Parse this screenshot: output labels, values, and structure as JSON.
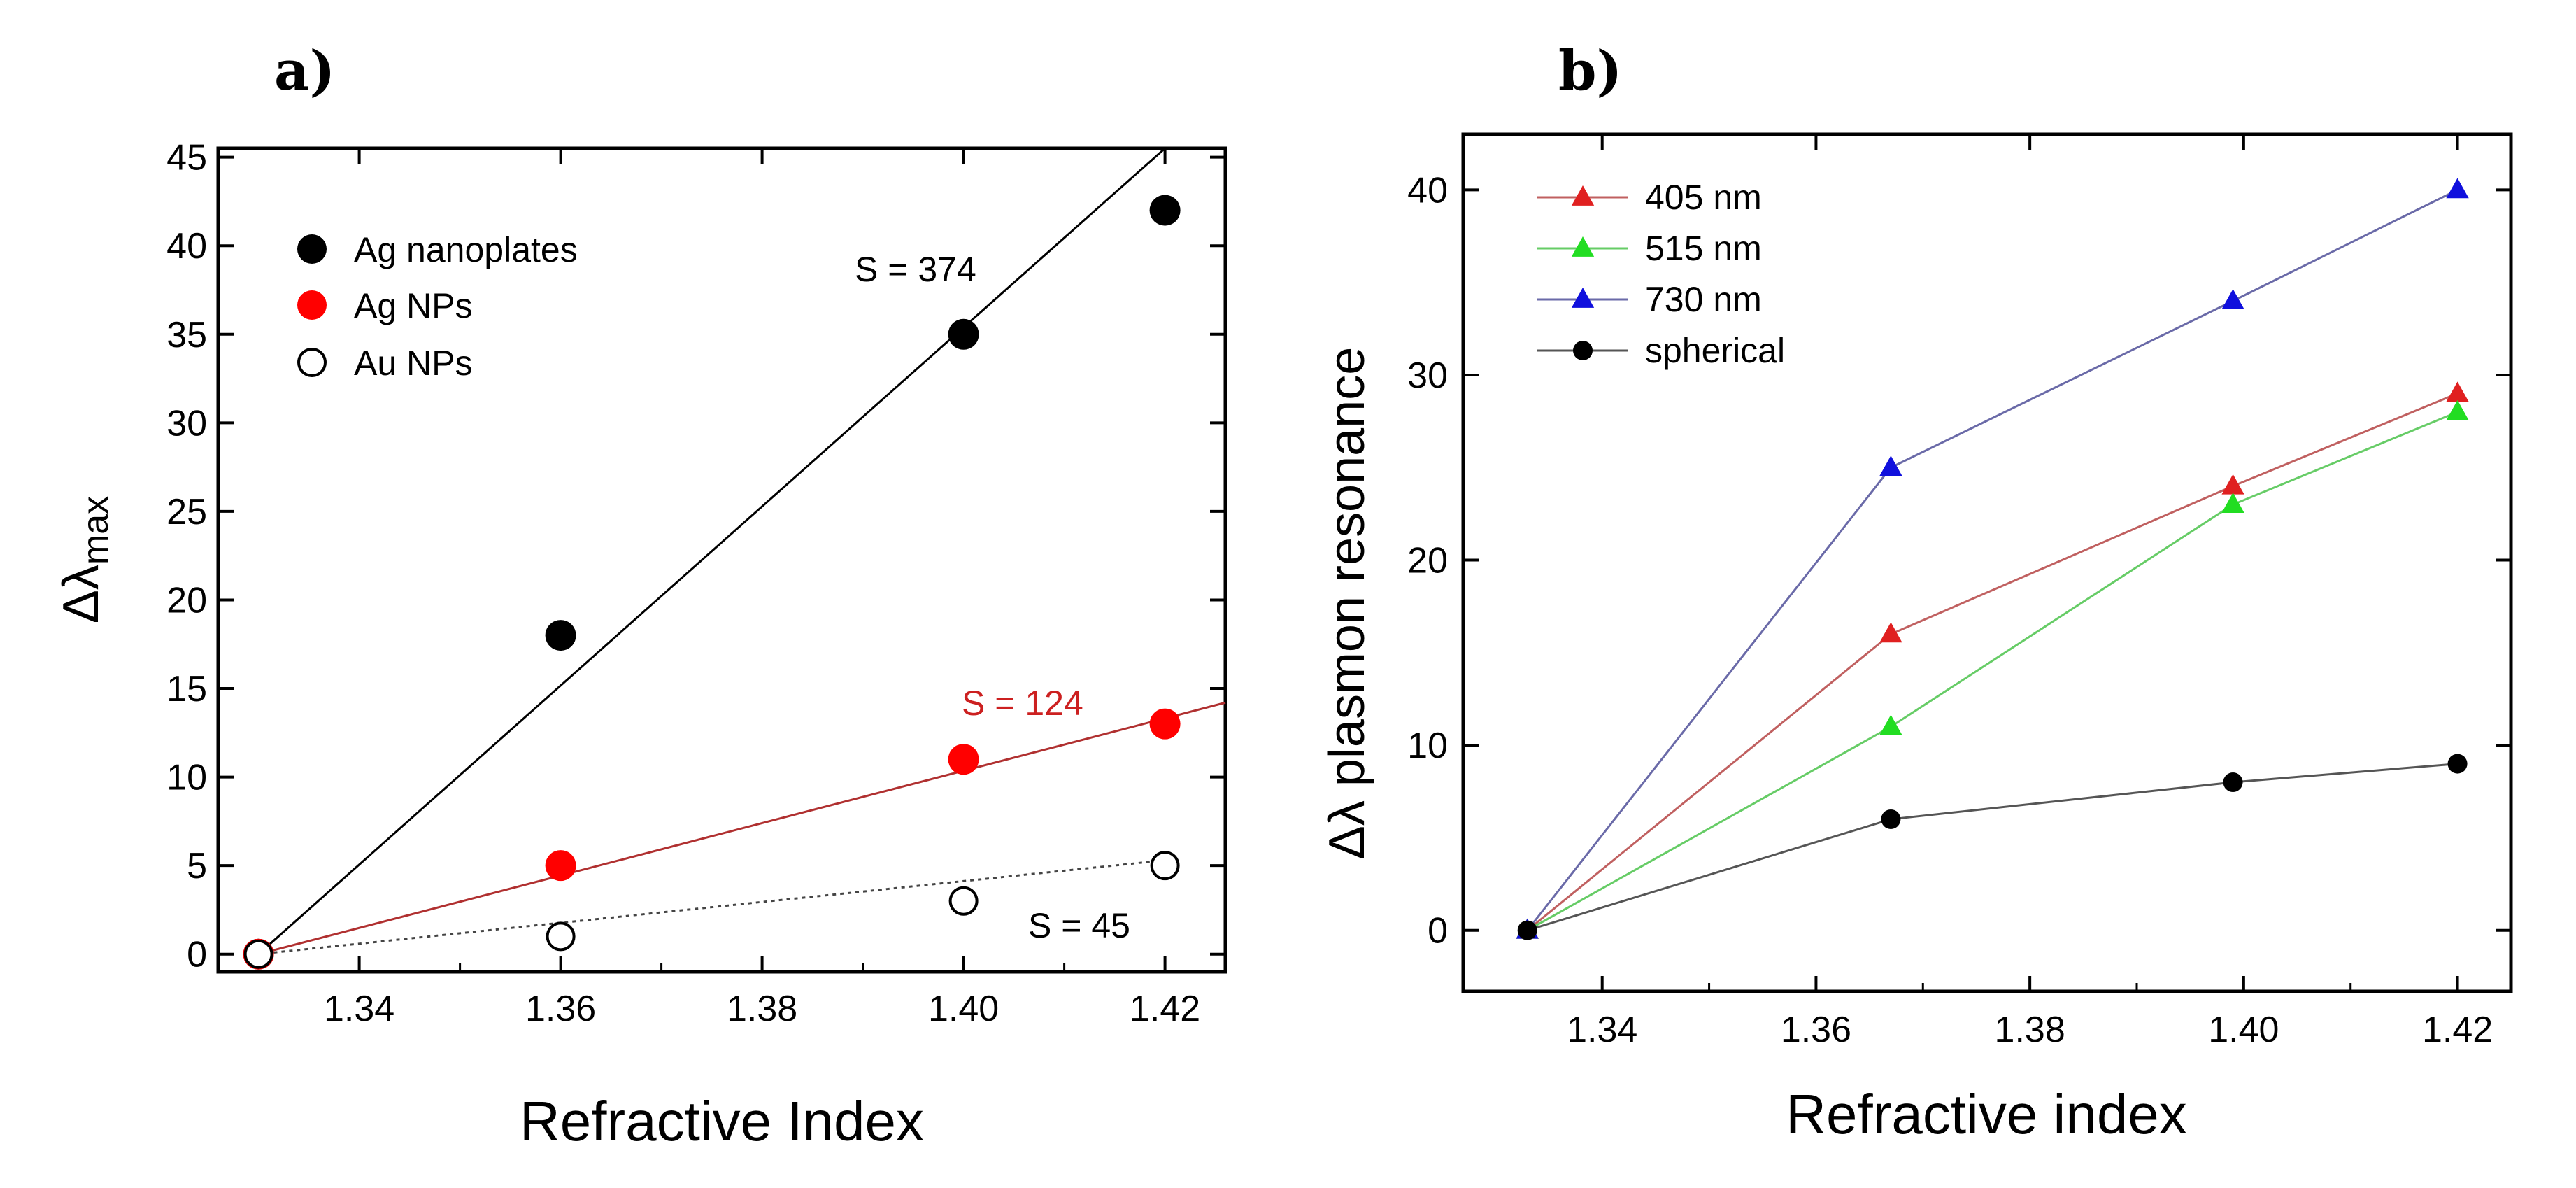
{
  "chart_data": [
    {
      "type": "scatter",
      "panel_label": "a)",
      "xlabel": "Refractive Index",
      "ylabel": "Δλmax",
      "ylabel_main": "Δλ",
      "ylabel_sub": "max",
      "xlim": [
        1.326,
        1.426
      ],
      "ylim": [
        -1,
        45.5
      ],
      "xticks": [
        1.34,
        1.36,
        1.38,
        1.4,
        1.42
      ],
      "xtick_labels": [
        "1.34",
        "1.36",
        "1.38",
        "1.40",
        "1.42"
      ],
      "yticks": [
        0,
        5,
        10,
        15,
        20,
        25,
        30,
        35,
        40,
        45
      ],
      "ytick_labels": [
        "0",
        "5",
        "10",
        "15",
        "20",
        "25",
        "30",
        "35",
        "40",
        "45"
      ],
      "grid": false,
      "legend_position": "top-left",
      "series": [
        {
          "name": "Ag nanoplates",
          "marker": "filled-circle",
          "color": "#000000",
          "x": [
            1.33,
            1.36,
            1.4,
            1.42
          ],
          "y": [
            0,
            18,
            35,
            42
          ],
          "fit": {
            "x": [
              1.33,
              1.42
            ],
            "y": [
              0,
              45.5
            ],
            "style": "solid",
            "color": "#000000"
          },
          "annotation": "S = 374"
        },
        {
          "name": "Ag NPs",
          "marker": "filled-circle",
          "color": "#ff0000",
          "x": [
            1.33,
            1.36,
            1.4,
            1.42
          ],
          "y": [
            0,
            5,
            11,
            13
          ],
          "fit": {
            "x": [
              1.33,
              1.426
            ],
            "y": [
              0,
              14.2
            ],
            "style": "solid",
            "color": "#b03030"
          },
          "annotation": "S = 124"
        },
        {
          "name": "Au NPs",
          "marker": "open-circle",
          "color": "#000000",
          "x": [
            1.33,
            1.36,
            1.4,
            1.42
          ],
          "y": [
            0,
            1,
            3,
            5
          ],
          "fit": {
            "x": [
              1.33,
              1.42
            ],
            "y": [
              0,
              5.3
            ],
            "style": "dotted",
            "color": "#444444"
          },
          "annotation": "S = 45"
        }
      ]
    },
    {
      "type": "line",
      "panel_label": "b)",
      "xlabel": "Refractive index",
      "ylabel": "Δλ plasmon resonance",
      "xlim": [
        1.327,
        1.425
      ],
      "ylim": [
        -3.3,
        43
      ],
      "xticks": [
        1.34,
        1.36,
        1.38,
        1.4,
        1.42
      ],
      "xtick_labels": [
        "1.34",
        "1.36",
        "1.38",
        "1.40",
        "1.42"
      ],
      "yticks": [
        0,
        10,
        20,
        30,
        40
      ],
      "ytick_labels": [
        "0",
        "10",
        "20",
        "30",
        "40"
      ],
      "grid": false,
      "legend_position": "top-left",
      "series": [
        {
          "name": "405 nm",
          "marker": "triangle",
          "color": "#e02020",
          "line_color": "#c06060",
          "x": [
            1.333,
            1.367,
            1.399,
            1.42
          ],
          "y": [
            0,
            16,
            24,
            29
          ]
        },
        {
          "name": "515 nm",
          "marker": "triangle",
          "color": "#22dd22",
          "line_color": "#66cc66",
          "x": [
            1.333,
            1.367,
            1.399,
            1.42
          ],
          "y": [
            0,
            11,
            23,
            28
          ]
        },
        {
          "name": "730 nm",
          "marker": "triangle",
          "color": "#1010dd",
          "line_color": "#6a6aa8",
          "x": [
            1.333,
            1.367,
            1.399,
            1.42
          ],
          "y": [
            0,
            25,
            34,
            40
          ]
        },
        {
          "name": "spherical",
          "marker": "filled-circle",
          "color": "#000000",
          "line_color": "#555555",
          "x": [
            1.333,
            1.367,
            1.399,
            1.42
          ],
          "y": [
            0,
            6,
            8,
            9
          ]
        }
      ]
    }
  ]
}
